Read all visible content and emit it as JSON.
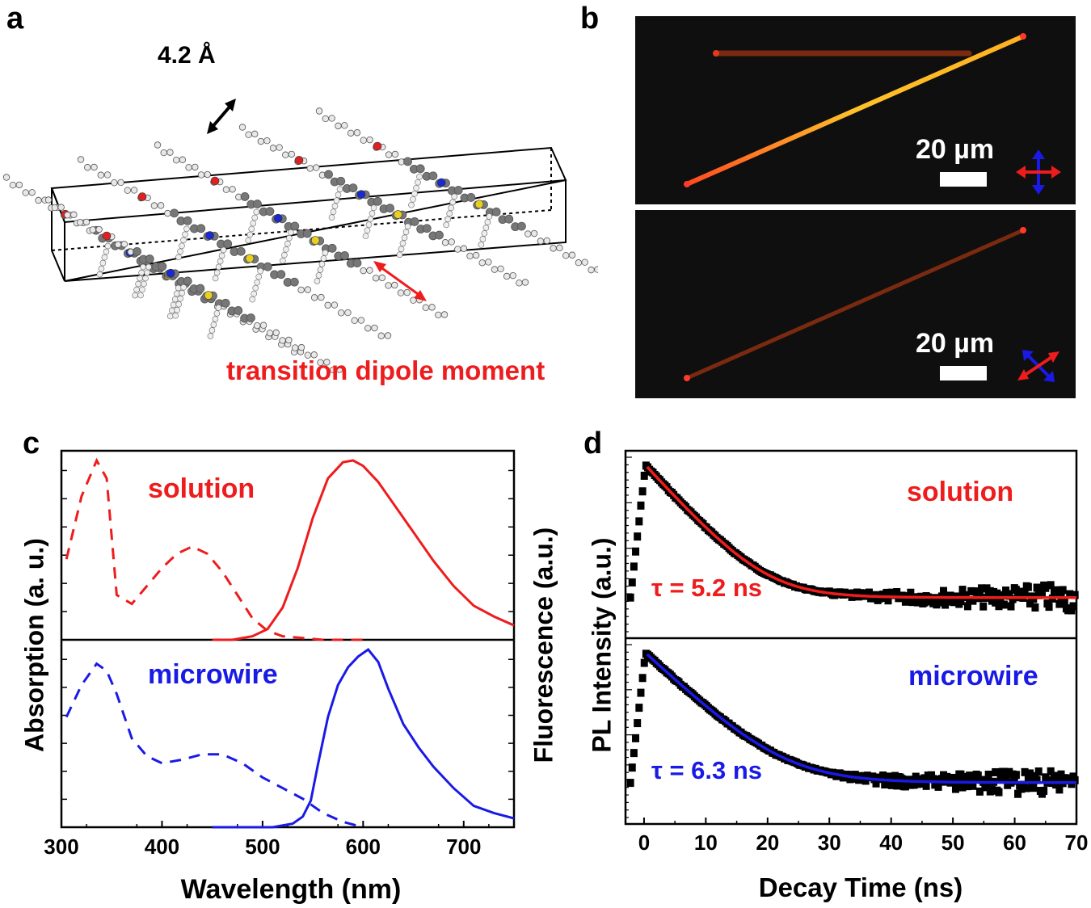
{
  "panels": {
    "a": {
      "letter": "a",
      "distance_label": "4.2 Å",
      "dipole_label": "transition dipole moment",
      "dipole_color": "#ee1c1c"
    },
    "b": {
      "letter": "b",
      "top_scale_label": "20 µm",
      "bottom_scale_label": "20 µm"
    },
    "c": {
      "letter": "c",
      "y_label_left": "Absorption (a. u.)",
      "y_label_right": "Fluorescence (a.u.)",
      "x_label": "Wavelength (nm)",
      "solution_label": "solution",
      "microwire_label": "microwire",
      "solution_color": "#ee1c1c",
      "microwire_color": "#1a1ae6"
    },
    "d": {
      "letter": "d",
      "y_label": "PL Intensity (a.u.)",
      "x_label": "Decay Time (ns)",
      "solution_label": "solution",
      "microwire_label": "microwire",
      "solution_tau": "τ = 5.2 ns",
      "microwire_tau": "τ = 6.3 ns"
    }
  },
  "chart_data": [
    {
      "panel": "c",
      "type": "line",
      "xlabel": "Wavelength (nm)",
      "ylabel_left": "Absorption (a. u.)",
      "ylabel_right": "Fluorescence (a.u.)",
      "xlim": [
        300,
        750
      ],
      "xticks": [
        300,
        400,
        500,
        600,
        700
      ],
      "subplots": [
        {
          "name": "solution",
          "series": [
            {
              "name": "absorption (dashed)",
              "x": [
                305,
                320,
                335,
                345,
                355,
                370,
                385,
                400,
                415,
                430,
                445,
                460,
                475,
                490,
                505,
                520,
                540,
                560,
                580,
                600
              ],
              "values": [
                0.45,
                0.8,
                1.0,
                0.9,
                0.25,
                0.2,
                0.3,
                0.4,
                0.48,
                0.52,
                0.48,
                0.38,
                0.25,
                0.12,
                0.05,
                0.02,
                0.01,
                0.0,
                0.0,
                0.0
              ]
            },
            {
              "name": "fluorescence (solid)",
              "x": [
                450,
                470,
                490,
                505,
                520,
                535,
                550,
                565,
                580,
                590,
                600,
                615,
                630,
                650,
                670,
                690,
                710,
                730,
                750
              ],
              "values": [
                0.0,
                0.0,
                0.02,
                0.06,
                0.18,
                0.4,
                0.68,
                0.9,
                0.99,
                1.0,
                0.97,
                0.88,
                0.76,
                0.6,
                0.44,
                0.3,
                0.19,
                0.13,
                0.08
              ]
            }
          ]
        },
        {
          "name": "microwire",
          "series": [
            {
              "name": "absorption (dashed)",
              "x": [
                305,
                320,
                335,
                345,
                355,
                370,
                385,
                400,
                420,
                440,
                460,
                480,
                500,
                520,
                540,
                560,
                580,
                600
              ],
              "values": [
                0.62,
                0.8,
                0.92,
                0.88,
                0.75,
                0.5,
                0.4,
                0.36,
                0.38,
                0.41,
                0.41,
                0.36,
                0.28,
                0.22,
                0.16,
                0.08,
                0.03,
                0.0
              ]
            },
            {
              "name": "fluorescence (solid)",
              "x": [
                450,
                480,
                510,
                530,
                540,
                548,
                555,
                565,
                575,
                585,
                595,
                605,
                615,
                625,
                640,
                655,
                670,
                690,
                710,
                730,
                750
              ],
              "values": [
                0.0,
                0.0,
                0.0,
                0.02,
                0.06,
                0.15,
                0.35,
                0.62,
                0.8,
                0.9,
                0.96,
                1.0,
                0.93,
                0.78,
                0.58,
                0.45,
                0.34,
                0.22,
                0.12,
                0.08,
                0.05
              ]
            }
          ]
        }
      ]
    },
    {
      "panel": "d",
      "type": "scatter",
      "xlabel": "Decay Time (ns)",
      "ylabel": "PL Intensity (a.u.)",
      "xlim": [
        -3,
        70
      ],
      "xticks": [
        0,
        10,
        20,
        30,
        40,
        50,
        60,
        70
      ],
      "yscale": "log",
      "subplots": [
        {
          "name": "solution",
          "tau_ns": 5.2,
          "fit_color": "#ee1c1c",
          "peak_time": 0.5,
          "background": 0.025
        },
        {
          "name": "microwire",
          "tau_ns": 6.3,
          "fit_color": "#1a1ae6",
          "peak_time": 0.5,
          "background": 0.03
        }
      ]
    }
  ]
}
